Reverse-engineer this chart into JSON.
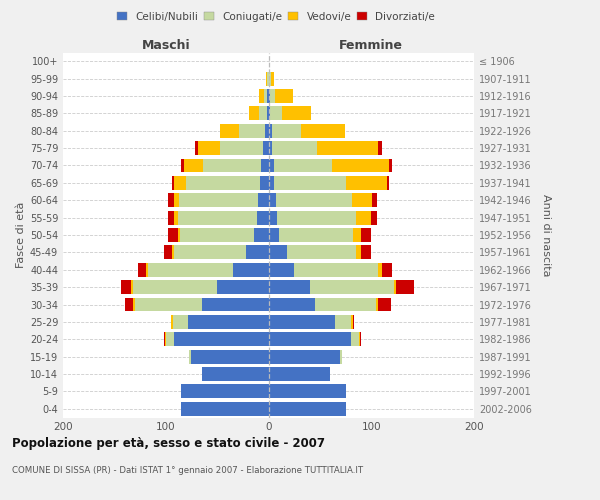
{
  "age_groups": [
    "0-4",
    "5-9",
    "10-14",
    "15-19",
    "20-24",
    "25-29",
    "30-34",
    "35-39",
    "40-44",
    "45-49",
    "50-54",
    "55-59",
    "60-64",
    "65-69",
    "70-74",
    "75-79",
    "80-84",
    "85-89",
    "90-94",
    "95-99",
    "100+"
  ],
  "birth_years": [
    "2002-2006",
    "1997-2001",
    "1992-1996",
    "1987-1991",
    "1982-1986",
    "1977-1981",
    "1972-1976",
    "1967-1971",
    "1962-1966",
    "1957-1961",
    "1952-1956",
    "1947-1951",
    "1942-1946",
    "1937-1941",
    "1932-1936",
    "1927-1931",
    "1922-1926",
    "1917-1921",
    "1912-1916",
    "1907-1911",
    "≤ 1906"
  ],
  "male_celibi": [
    85,
    85,
    65,
    75,
    92,
    78,
    65,
    50,
    35,
    22,
    14,
    11,
    10,
    8,
    7,
    5,
    3,
    1,
    1,
    0,
    0
  ],
  "male_coniugati": [
    0,
    0,
    0,
    2,
    8,
    15,
    65,
    82,
    82,
    70,
    72,
    77,
    77,
    72,
    57,
    42,
    26,
    8,
    3,
    1,
    0
  ],
  "male_vedovi": [
    0,
    0,
    0,
    0,
    1,
    2,
    2,
    2,
    2,
    2,
    2,
    4,
    5,
    12,
    18,
    22,
    18,
    10,
    5,
    1,
    0
  ],
  "male_divorziati": [
    0,
    0,
    0,
    0,
    1,
    0,
    8,
    10,
    8,
    8,
    10,
    6,
    6,
    2,
    3,
    3,
    0,
    0,
    0,
    0,
    0
  ],
  "female_nubili": [
    75,
    75,
    60,
    70,
    80,
    65,
    45,
    40,
    25,
    18,
    10,
    8,
    7,
    5,
    5,
    3,
    3,
    1,
    1,
    0,
    0
  ],
  "female_coniugate": [
    0,
    0,
    0,
    2,
    8,
    15,
    60,
    82,
    82,
    67,
    72,
    77,
    74,
    70,
    57,
    44,
    29,
    12,
    5,
    2,
    0
  ],
  "female_vedove": [
    0,
    0,
    0,
    0,
    1,
    2,
    2,
    2,
    3,
    5,
    8,
    15,
    20,
    40,
    55,
    60,
    42,
    28,
    18,
    3,
    0
  ],
  "female_divorziate": [
    0,
    0,
    0,
    0,
    1,
    1,
    12,
    18,
    10,
    10,
    10,
    6,
    5,
    2,
    3,
    3,
    0,
    0,
    0,
    0,
    0
  ],
  "color_celibi": "#4472c4",
  "color_coniugati": "#c5d9a0",
  "color_vedovi": "#ffc000",
  "color_divorziati": "#cc0000",
  "legend_labels": [
    "Celibi/Nubili",
    "Coniugati/e",
    "Vedovi/e",
    "Divorziati/e"
  ],
  "ylabel_left": "Fasce di età",
  "ylabel_right": "Anni di nascita",
  "xlabel_left": "Maschi",
  "xlabel_right": "Femmine",
  "title": "Popolazione per età, sesso e stato civile - 2007",
  "subtitle": "COMUNE DI SISSA (PR) - Dati ISTAT 1° gennaio 2007 - Elaborazione TUTTITALIA.IT",
  "xlim": 200,
  "bg_color": "#f0f0f0",
  "plot_bg": "#ffffff"
}
